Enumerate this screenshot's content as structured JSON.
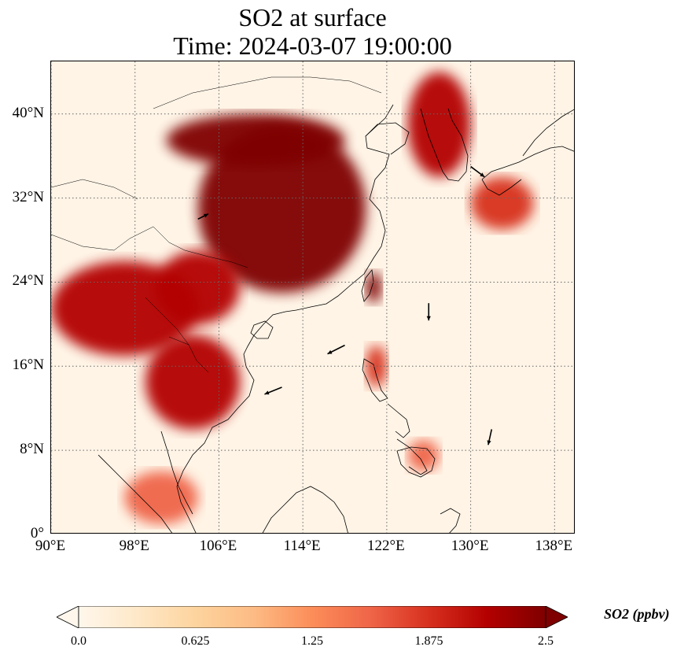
{
  "title": {
    "line1": "SO2 at surface",
    "line2": "Time: 2024-03-07 19:00:00"
  },
  "map": {
    "projection": "PlateCarree",
    "lon_range": [
      90,
      140
    ],
    "lat_range": [
      0,
      45
    ],
    "lat_ticks": [
      {
        "value": 0,
        "label": "0°"
      },
      {
        "value": 8,
        "label": "8°N"
      },
      {
        "value": 16,
        "label": "16°N"
      },
      {
        "value": 24,
        "label": "24°N"
      },
      {
        "value": 32,
        "label": "32°N"
      },
      {
        "value": 40,
        "label": "40°N"
      }
    ],
    "lon_ticks": [
      {
        "value": 90,
        "label": "90°E"
      },
      {
        "value": 98,
        "label": "98°E"
      },
      {
        "value": 106,
        "label": "106°E"
      },
      {
        "value": 114,
        "label": "114°E"
      },
      {
        "value": 122,
        "label": "122°E"
      },
      {
        "value": 130,
        "label": "130°E"
      },
      {
        "value": 138,
        "label": "138°E"
      }
    ],
    "gridlines": "dotted",
    "field_regions": [
      {
        "name": "east-china",
        "level": 2.5,
        "lon": [
          104,
          120
        ],
        "lat": [
          23,
          39
        ]
      },
      {
        "name": "north-china-plain",
        "level": 2.5,
        "lon": [
          101,
          118
        ],
        "lat": [
          35,
          40
        ]
      },
      {
        "name": "southwest-china",
        "level": 2.3,
        "lon": [
          100,
          108
        ],
        "lat": [
          20,
          27
        ]
      },
      {
        "name": "myanmar-laos",
        "level": 2.2,
        "lon": [
          90,
          104
        ],
        "lat": [
          17,
          26
        ]
      },
      {
        "name": "indochina",
        "level": 2.1,
        "lon": [
          99,
          108
        ],
        "lat": [
          10,
          19
        ]
      },
      {
        "name": "korea",
        "level": 2.3,
        "lon": [
          124,
          130
        ],
        "lat": [
          34,
          44
        ]
      },
      {
        "name": "japan-south",
        "level": 2.0,
        "lon": [
          130,
          136
        ],
        "lat": [
          29,
          34
        ]
      },
      {
        "name": "taiwan",
        "level": 2.4,
        "lon": [
          120,
          121.5
        ],
        "lat": [
          22,
          25
        ]
      },
      {
        "name": "luzon",
        "level": 1.8,
        "lon": [
          120,
          122
        ],
        "lat": [
          14,
          18
        ]
      },
      {
        "name": "mindanao",
        "level": 1.6,
        "lon": [
          124,
          127
        ],
        "lat": [
          6,
          9
        ]
      },
      {
        "name": "sumatra-malaya",
        "level": 1.7,
        "lon": [
          97,
          104
        ],
        "lat": [
          1,
          6
        ]
      }
    ],
    "wind_vectors": [
      {
        "lon": 126,
        "lat": 22,
        "u": 0.0,
        "v": -1.0
      },
      {
        "lon": 118,
        "lat": 18,
        "u": -1.0,
        "v": -0.5
      },
      {
        "lon": 112,
        "lat": 14,
        "u": -1.0,
        "v": -0.4
      },
      {
        "lon": 130,
        "lat": 35,
        "u": 0.8,
        "v": -0.6
      },
      {
        "lon": 132,
        "lat": 10,
        "u": -0.2,
        "v": -0.9
      },
      {
        "lon": 104,
        "lat": 30,
        "u": 0.6,
        "v": 0.3
      }
    ]
  },
  "colorbar": {
    "min": 0.0,
    "max": 2.5,
    "ticks": [
      "0.0",
      "0.625",
      "1.25",
      "1.875",
      "2.5"
    ],
    "label": "SO2 (ppbv)",
    "colormap": [
      "#fff7ec",
      "#fee8c8",
      "#fdd49e",
      "#fdbb84",
      "#fc8d59",
      "#ef6548",
      "#d7301f",
      "#b30000",
      "#7f0000"
    ],
    "extend": "both"
  }
}
